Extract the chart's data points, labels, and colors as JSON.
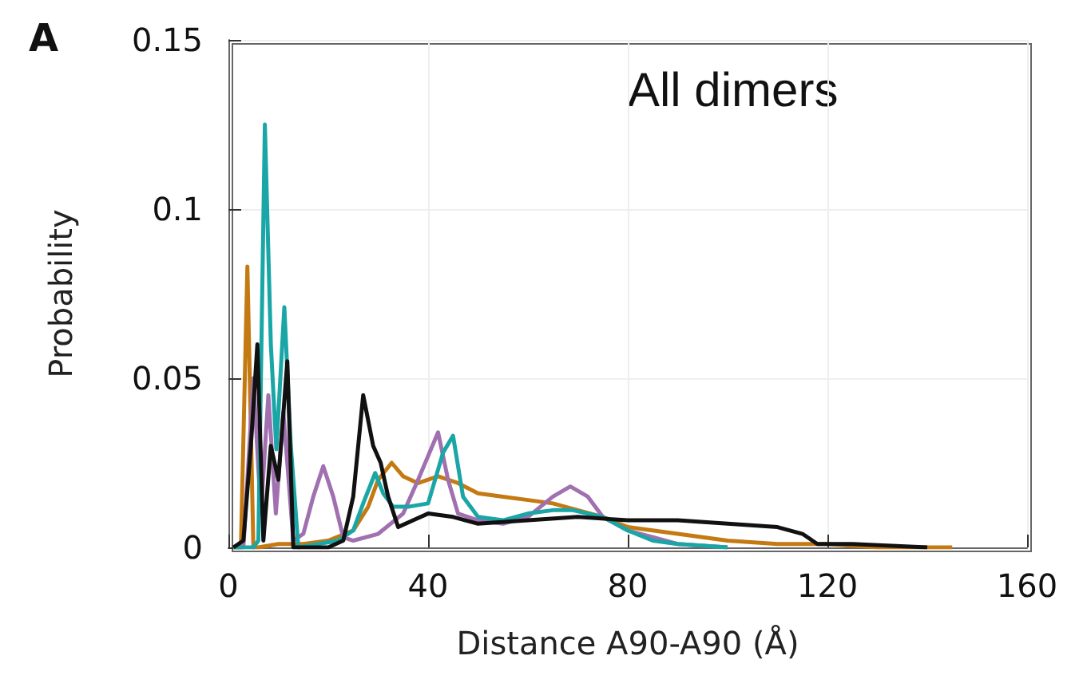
{
  "chart_data": {
    "type": "line",
    "xlabel": "Distance A90-A90 (Å)",
    "ylabel": "Probability",
    "annotations": [
      "A",
      "All dimers"
    ],
    "xlim": [
      0,
      160
    ],
    "xticks": [
      0,
      40,
      80,
      120,
      160
    ],
    "ylim": [
      0,
      0.15
    ],
    "yticks": [
      0,
      0.05,
      0.1,
      0.15
    ],
    "grid": true,
    "marker": "none",
    "line_style": "solid",
    "series": [
      {
        "color": "#c47a12",
        "x": [
          1,
          2.5,
          3.8,
          5,
          6,
          10,
          15,
          20,
          25,
          28,
          30,
          32.7,
          35,
          38,
          42,
          46,
          50,
          55,
          60,
          65,
          70,
          75,
          80,
          85,
          90,
          100,
          110,
          120,
          130,
          140,
          145
        ],
        "values": [
          0,
          0,
          0.083,
          0,
          0,
          0.001,
          0.001,
          0.002,
          0.005,
          0.012,
          0.02,
          0.025,
          0.021,
          0.019,
          0.021,
          0.019,
          0.016,
          0.015,
          0.014,
          0.013,
          0.011,
          0.009,
          0.006,
          0.005,
          0.004,
          0.002,
          0.001,
          0.001,
          0,
          0,
          0
        ]
      },
      {
        "color": "#a070b0",
        "x": [
          1,
          3,
          5,
          6.5,
          8,
          9.5,
          11,
          13,
          15,
          17,
          19,
          21,
          23,
          25,
          30,
          35,
          38,
          42,
          44,
          46,
          50,
          55,
          60,
          65,
          68.5,
          72,
          75,
          80,
          85,
          90,
          100
        ],
        "values": [
          0,
          0,
          0.05,
          0.01,
          0.045,
          0.01,
          0.04,
          0.002,
          0.004,
          0.015,
          0.024,
          0.015,
          0.003,
          0.002,
          0.004,
          0.01,
          0.02,
          0.034,
          0.02,
          0.01,
          0.008,
          0.007,
          0.009,
          0.015,
          0.018,
          0.015,
          0.009,
          0.005,
          0.003,
          0.001,
          0
        ]
      },
      {
        "color": "#1aa6a6",
        "x": [
          1,
          5,
          6,
          7.3,
          8.5,
          9.6,
          11.2,
          12.5,
          14,
          18,
          22,
          25,
          27,
          29.4,
          31,
          33,
          36,
          40,
          43,
          45,
          47,
          50,
          55,
          60,
          65,
          69,
          75,
          80,
          85,
          90,
          100
        ],
        "values": [
          0,
          0,
          0.002,
          0.125,
          0.06,
          0.029,
          0.071,
          0.03,
          0,
          0.001,
          0.002,
          0.005,
          0.013,
          0.022,
          0.016,
          0.012,
          0.012,
          0.013,
          0.028,
          0.033,
          0.015,
          0.009,
          0.008,
          0.01,
          0.011,
          0.011,
          0.009,
          0.005,
          0.002,
          0.001,
          0
        ]
      },
      {
        "color": "#111111",
        "x": [
          1,
          3,
          4.5,
          5.8,
          7,
          8.5,
          10,
          11.8,
          13,
          16,
          20,
          23,
          25,
          27,
          29,
          30.5,
          32,
          34,
          37,
          40,
          45,
          50,
          60,
          70,
          80,
          90,
          100,
          110,
          115,
          118,
          125,
          140
        ],
        "values": [
          0,
          0.002,
          0.03,
          0.06,
          0.002,
          0.03,
          0.02,
          0.055,
          0,
          0,
          0,
          0.002,
          0.015,
          0.045,
          0.03,
          0.025,
          0.015,
          0.006,
          0.008,
          0.01,
          0.009,
          0.007,
          0.008,
          0.009,
          0.008,
          0.008,
          0.007,
          0.006,
          0.004,
          0.001,
          0.001,
          0
        ]
      }
    ]
  }
}
